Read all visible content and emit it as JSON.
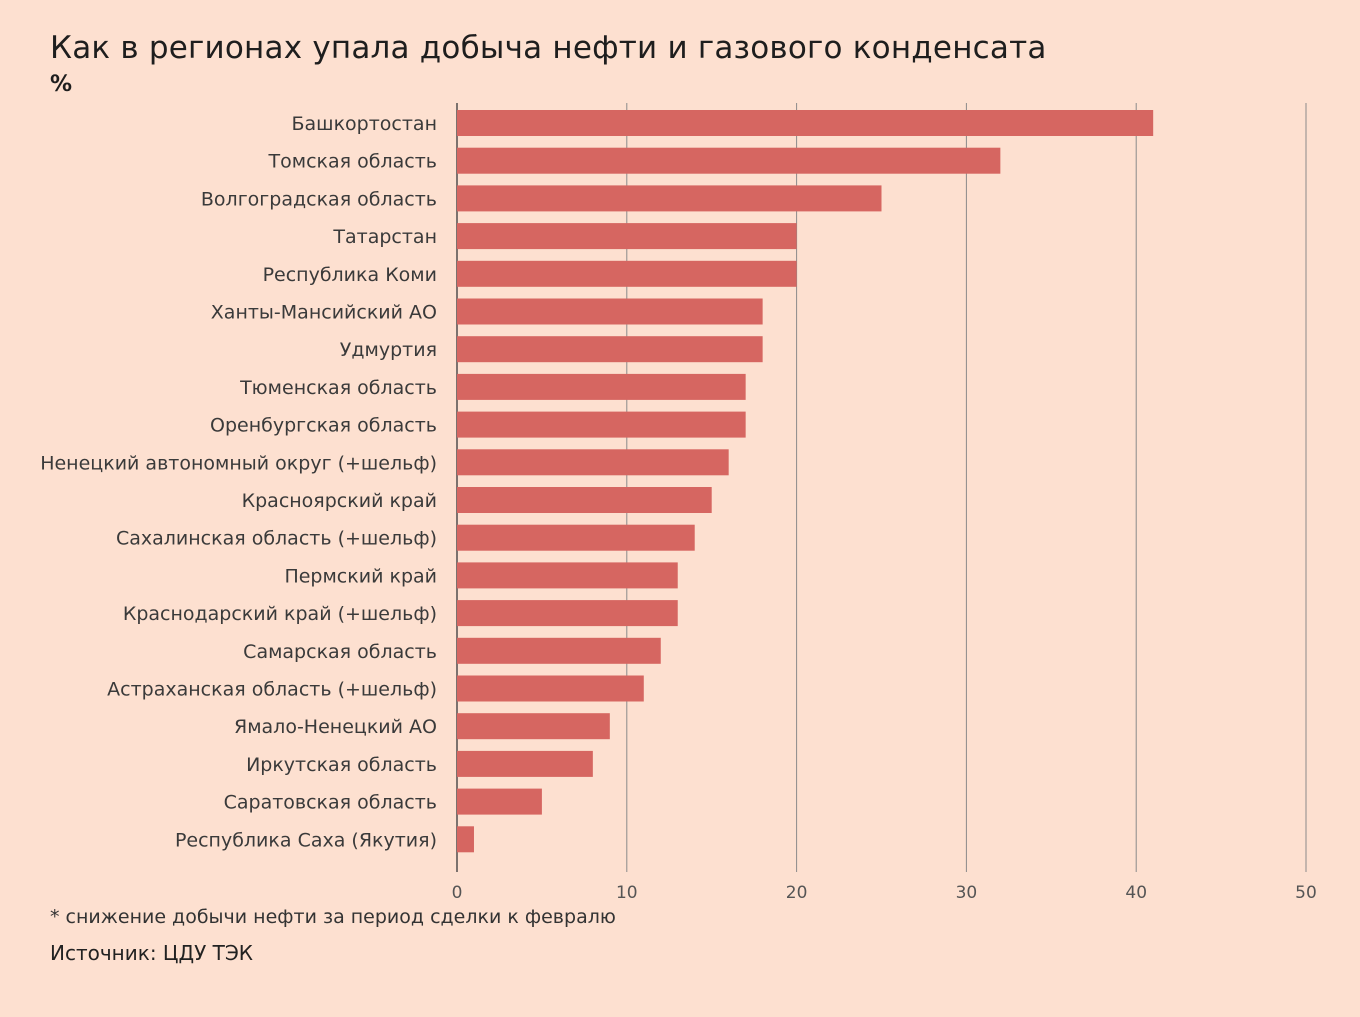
{
  "chart_data": {
    "type": "bar",
    "orientation": "horizontal",
    "title": "Как в регионах упала добыча нефти и газового конденсата",
    "unit": "%",
    "categories": [
      "Башкортостан",
      "Томская область",
      "Волгоградская область",
      "Татарстан",
      "Республика Коми",
      "Ханты-Мансийский АО",
      "Удмуртия",
      "Тюменская область",
      "Оренбургская область",
      "Ненецкий автономный округ (+шельф)",
      "Красноярский край",
      "Сахалинская область (+шельф)",
      "Пермский край",
      "Краснодарский край (+шельф)",
      "Самарская область",
      "Астраханская область (+шельф)",
      "Ямало-Ненецкий АО",
      "Иркутская область",
      "Саратовская область",
      "Республика Саха (Якутия)"
    ],
    "values": [
      41,
      32,
      25,
      20,
      20,
      18,
      18,
      17,
      17,
      16,
      15,
      14,
      13,
      13,
      12,
      11,
      9,
      8,
      5,
      1
    ],
    "xlim": [
      0,
      50
    ],
    "xticks": [
      0,
      10,
      20,
      30,
      40,
      50
    ],
    "grid": "vertical",
    "bar_color": "#d66661",
    "grid_color": "#8a8a8a",
    "footnote": "* снижение добычи нефти за период сделки к февралю",
    "source": "Источник: ЦДУ ТЭК"
  }
}
